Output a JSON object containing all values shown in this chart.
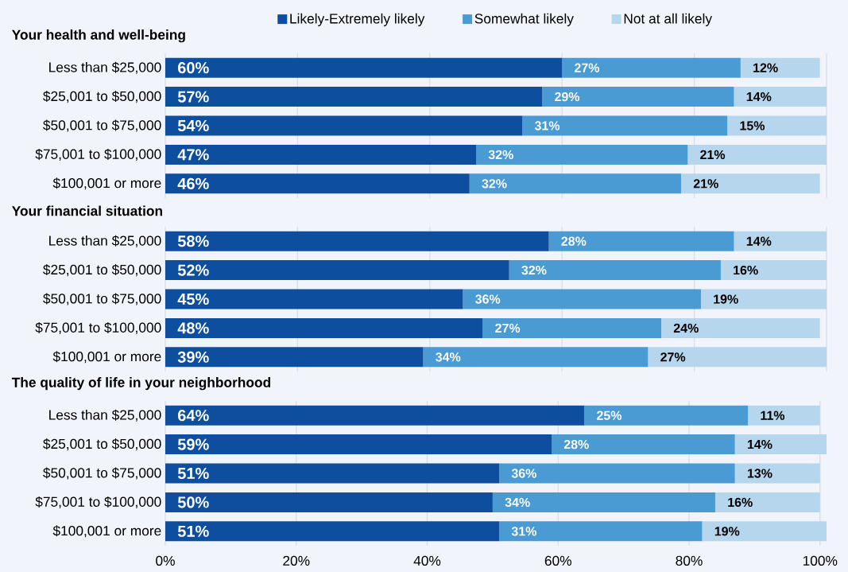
{
  "chart_data": [
    {
      "type": "bar",
      "orientation": "horizontal",
      "stacked": true,
      "title": "Your health and well-being",
      "categories": [
        "Less than $25,000",
        "$25,001 to $50,000",
        "$50,001 to $75,000",
        "$75,001 to $100,000",
        "$100,001 or more"
      ],
      "series": [
        {
          "name": "Likely-Extremely likely",
          "color": "#0d4f9e",
          "values": [
            60,
            57,
            54,
            47,
            46
          ],
          "value_labels": [
            "60%",
            "57%",
            "54%",
            "47%",
            "46%"
          ]
        },
        {
          "name": "Somewhat likely",
          "color": "#4a9ad4",
          "values": [
            27,
            29,
            31,
            32,
            32
          ],
          "value_labels": [
            "27%",
            "29%",
            "31%",
            "32%",
            "32%"
          ]
        },
        {
          "name": "Not at all likely",
          "color": "#b6d6ed",
          "values": [
            12,
            14,
            15,
            21,
            21
          ],
          "value_labels": [
            "12%",
            "14%",
            "15%",
            "21%",
            "21%"
          ]
        }
      ],
      "xlim": [
        0,
        100
      ],
      "xticks": [
        {
          "value": 0,
          "label": null
        },
        {
          "value": 20,
          "label": null
        },
        {
          "value": 40,
          "label": null
        },
        {
          "value": 60,
          "label": null
        },
        {
          "value": 80,
          "label": null
        },
        {
          "value": 100,
          "label": null
        }
      ],
      "grid": "x",
      "legend": "top",
      "tick_labels": "y"
    },
    {
      "type": "bar",
      "orientation": "horizontal",
      "stacked": true,
      "title": "Your financial situation",
      "categories": [
        "Less than $25,000",
        "$25,001 to $50,000",
        "$50,001 to $75,000",
        "$75,001 to $100,000",
        "$100,001 or more"
      ],
      "series": [
        {
          "color": "#0d4f9e",
          "values": [
            58,
            52,
            45,
            48,
            39
          ],
          "value_labels": [
            "58%",
            "52%",
            "45%",
            "48%",
            "39%"
          ]
        },
        {
          "color": "#4a9ad4",
          "values": [
            28,
            32,
            36,
            27,
            34
          ],
          "value_labels": [
            "28%",
            "32%",
            "36%",
            "27%",
            "34%"
          ]
        },
        {
          "color": "#b6d6ed",
          "values": [
            14,
            16,
            19,
            24,
            27
          ],
          "value_labels": [
            "14%",
            "16%",
            "19%",
            "24%",
            "27%"
          ]
        }
      ],
      "xlim": [
        0,
        100
      ],
      "xticks": [
        {
          "value": 0,
          "label": null
        },
        {
          "value": 20,
          "label": null
        },
        {
          "value": 40,
          "label": null
        },
        {
          "value": 60,
          "label": null
        },
        {
          "value": 80,
          "label": null
        },
        {
          "value": 100,
          "label": null
        }
      ],
      "grid": "x",
      "tick_labels": "y"
    },
    {
      "type": "bar",
      "orientation": "horizontal",
      "stacked": true,
      "title": "The quality of life in your neighborhood",
      "categories": [
        "Less than $25,000",
        "$25,001 to $50,000",
        "$50,001 to $75,000",
        "$75,001 to $100,000",
        "$100,001 or more"
      ],
      "series": [
        {
          "color": "#0d4f9e",
          "values": [
            64,
            59,
            51,
            50,
            51
          ],
          "value_labels": [
            "64%",
            "59%",
            "51%",
            "50%",
            "51%"
          ]
        },
        {
          "color": "#4a9ad4",
          "values": [
            25,
            28,
            36,
            34,
            31
          ],
          "value_labels": [
            "25%",
            "28%",
            "36%",
            "34%",
            "31%"
          ]
        },
        {
          "color": "#b6d6ed",
          "values": [
            11,
            14,
            13,
            16,
            19
          ],
          "value_labels": [
            "11%",
            "14%",
            "13%",
            "16%",
            "19%"
          ]
        }
      ],
      "xlim": [
        0,
        101
      ],
      "xticks": [
        {
          "value": 0,
          "label": "0%"
        },
        {
          "value": 20,
          "label": "20%"
        },
        {
          "value": 40,
          "label": "40%"
        },
        {
          "value": 60,
          "label": "60%"
        },
        {
          "value": 80,
          "label": "80%"
        },
        {
          "value": 100,
          "label": "100%"
        }
      ],
      "grid": "x"
    }
  ]
}
